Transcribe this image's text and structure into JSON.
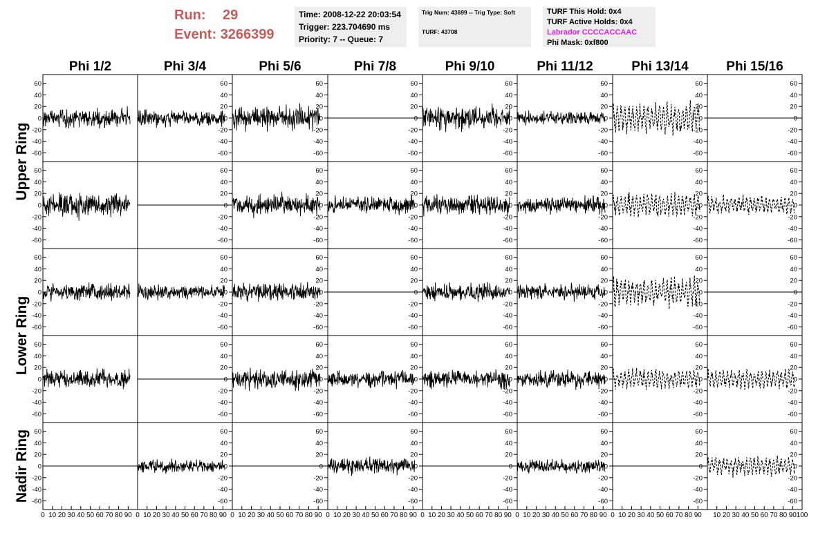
{
  "header": {
    "run_label": "Run:",
    "run_value": "29",
    "event_label": "Event:",
    "event_value": "3266399",
    "time_text": "Time: 2008-12-22 20:03:54",
    "trigger_text": "Trigger: 223.704690 ms",
    "priority_text": "Priority: 7 -- Queue: 7",
    "trig_num_text": "Trig Num: 43699 -- Trig Type: Soft",
    "turf_text": "TURF: 43708",
    "turf_hold_text": "TURF This Hold: 0x4",
    "turf_active_text": "TURF Active Holds: 0x4",
    "labrador_text": "Labrador CCCCACCAAC",
    "phi_mask_text": "Phi Mask: 0xf800",
    "labrador_color": "#e020e0",
    "run_color": "#c85a5a"
  },
  "chart_data": {
    "type": "line",
    "columns": [
      "Phi 1/2",
      "Phi 3/4",
      "Phi 5/6",
      "Phi 7/8",
      "Phi 9/10",
      "Phi 11/12",
      "Phi 13/14",
      "Phi 15/16"
    ],
    "ring_labels": [
      {
        "text": "Upper Ring",
        "rows": [
          0,
          1
        ]
      },
      {
        "text": "Lower Ring",
        "rows": [
          2,
          3
        ]
      },
      {
        "text": "Nadir Ring",
        "rows": [
          4,
          4
        ]
      }
    ],
    "xlim": [
      0,
      100
    ],
    "ylim": [
      -75,
      75
    ],
    "y_ticks": [
      -60,
      -40,
      -20,
      0,
      20,
      40,
      60
    ],
    "x_ticks": [
      0,
      10,
      20,
      30,
      40,
      50,
      60,
      70,
      80,
      90
    ],
    "x_ticks_last": [
      10,
      20,
      30,
      40,
      50,
      60,
      70,
      80,
      90,
      100
    ],
    "x_tick_label_format": "no spacing between labels",
    "trace_x_range": [
      0,
      92
    ],
    "trace_points": 260,
    "panels": [
      [
        {
          "style": "solid",
          "amp": 14
        },
        {
          "style": "solid",
          "amp": 11
        },
        {
          "style": "solid",
          "amp": 17
        },
        {
          "style": "flat",
          "amp": 0
        },
        {
          "style": "solid",
          "amp": 16
        },
        {
          "style": "solid",
          "amp": 9
        },
        {
          "style": "dashed",
          "amp": 22
        },
        {
          "style": "flat",
          "amp": 0
        }
      ],
      [
        {
          "style": "solid",
          "amp": 17
        },
        {
          "style": "flat",
          "amp": 0
        },
        {
          "style": "solid",
          "amp": 14
        },
        {
          "style": "solid",
          "amp": 12
        },
        {
          "style": "solid",
          "amp": 14
        },
        {
          "style": "solid",
          "amp": 12
        },
        {
          "style": "dashed",
          "amp": 17
        },
        {
          "style": "dashed",
          "amp": 14
        }
      ],
      [
        {
          "style": "solid",
          "amp": 12
        },
        {
          "style": "solid",
          "amp": 11
        },
        {
          "style": "solid",
          "amp": 13
        },
        {
          "style": "flat",
          "amp": 0
        },
        {
          "style": "solid",
          "amp": 12
        },
        {
          "style": "solid",
          "amp": 11
        },
        {
          "style": "dashed",
          "amp": 21
        },
        {
          "style": "flat",
          "amp": 0
        }
      ],
      [
        {
          "style": "solid",
          "amp": 13
        },
        {
          "style": "flat",
          "amp": 0
        },
        {
          "style": "solid",
          "amp": 14
        },
        {
          "style": "solid",
          "amp": 12
        },
        {
          "style": "solid",
          "amp": 13
        },
        {
          "style": "solid",
          "amp": 12
        },
        {
          "style": "dashed",
          "amp": 14
        },
        {
          "style": "dashed",
          "amp": 14
        }
      ],
      [
        {
          "style": "flat",
          "amp": 0
        },
        {
          "style": "solid",
          "amp": 9
        },
        {
          "style": "flat",
          "amp": 0
        },
        {
          "style": "solid",
          "amp": 11
        },
        {
          "style": "flat",
          "amp": 0
        },
        {
          "style": "solid",
          "amp": 10
        },
        {
          "style": "flat",
          "amp": 0
        },
        {
          "style": "dashed",
          "amp": 14
        }
      ]
    ],
    "grid": false,
    "legend": "none"
  }
}
